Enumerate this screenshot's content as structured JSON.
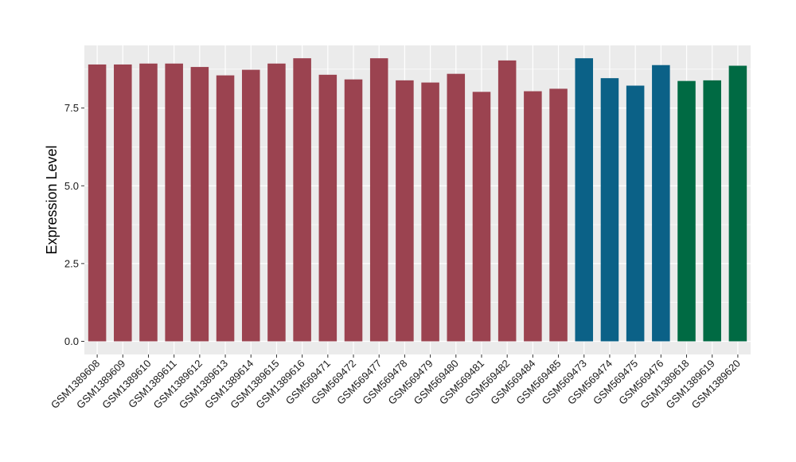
{
  "chart_data": {
    "type": "bar",
    "title": "",
    "xlabel": "",
    "ylabel": "Expression Level",
    "ylim": [
      0,
      9.5
    ],
    "yticks": [
      0.0,
      2.5,
      5.0,
      7.5
    ],
    "ytick_labels": [
      "0.0",
      "2.5",
      "5.0",
      "7.5"
    ],
    "grid": true,
    "legend": "none",
    "background_color": "#ebebeb",
    "grid_color": "#ffffff",
    "categories": [
      "GSM1389608",
      "GSM1389609",
      "GSM1389610",
      "GSM1389611",
      "GSM1389612",
      "GSM1389613",
      "GSM1389614",
      "GSM1389615",
      "GSM1389616",
      "GSM569471",
      "GSM569472",
      "GSM569477",
      "GSM569478",
      "GSM569479",
      "GSM569480",
      "GSM569481",
      "GSM569482",
      "GSM569484",
      "GSM569485",
      "GSM569473",
      "GSM569474",
      "GSM569475",
      "GSM569476",
      "GSM1389618",
      "GSM1389619",
      "GSM1389620"
    ],
    "values": [
      8.9,
      8.9,
      8.93,
      8.93,
      8.82,
      8.55,
      8.73,
      8.93,
      9.1,
      8.57,
      8.42,
      9.1,
      8.39,
      8.32,
      8.6,
      8.02,
      9.03,
      8.04,
      8.12,
      9.1,
      8.46,
      8.22,
      8.88,
      8.37,
      8.39,
      8.86
    ],
    "colors": [
      "#9b4350",
      "#9b4350",
      "#9b4350",
      "#9b4350",
      "#9b4350",
      "#9b4350",
      "#9b4350",
      "#9b4350",
      "#9b4350",
      "#9b4350",
      "#9b4350",
      "#9b4350",
      "#9b4350",
      "#9b4350",
      "#9b4350",
      "#9b4350",
      "#9b4350",
      "#9b4350",
      "#9b4350",
      "#0b6187",
      "#0b6187",
      "#0b6187",
      "#0b6187",
      "#006a43",
      "#006a43",
      "#006a43"
    ]
  }
}
